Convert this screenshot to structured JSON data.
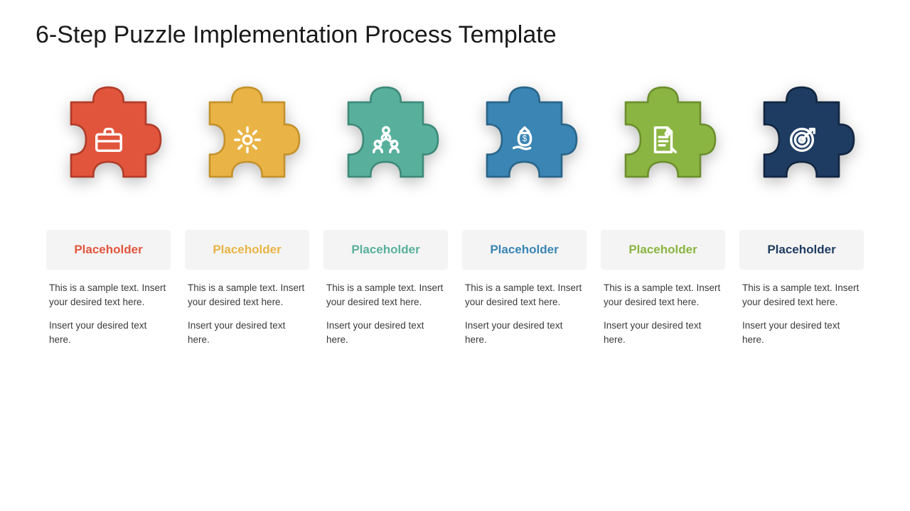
{
  "title": "6-Step Puzzle Implementation Process Template",
  "background_color": "#ffffff",
  "card_header_bg": "#f4f4f4",
  "body_text_color": "#3a3a3a",
  "steps": [
    {
      "color": "#e2553d",
      "stroke": "#b03c29",
      "icon": "briefcase",
      "label": "Placeholder",
      "text1": "This is a sample text. Insert your desired text here.",
      "text2": "Insert your desired text here."
    },
    {
      "color": "#e9b445",
      "stroke": "#c4922d",
      "icon": "gear",
      "label": "Placeholder",
      "text1": "This is a sample text. Insert your desired text here.",
      "text2": "Insert your desired text here."
    },
    {
      "color": "#58b09c",
      "stroke": "#3e8a79",
      "icon": "people",
      "label": "Placeholder",
      "text1": "This is a sample text. Insert your desired text here.",
      "text2": "Insert your desired text here."
    },
    {
      "color": "#3a85b4",
      "stroke": "#2a6589",
      "icon": "moneyhand",
      "label": "Placeholder",
      "text1": "This is a sample text. Insert your desired text here.",
      "text2": "Insert your desired text here."
    },
    {
      "color": "#8bb542",
      "stroke": "#6c8f2e",
      "icon": "document",
      "label": "Placeholder",
      "text1": "This is a sample text. Insert your desired text here.",
      "text2": "Insert your desired text here."
    },
    {
      "color": "#1e3c62",
      "stroke": "#122640",
      "icon": "target",
      "label": "Placeholder",
      "text1": "This is a sample text. Insert your desired text here.",
      "text2": "Insert your desired text here."
    }
  ],
  "icon_stroke": "#ffffff",
  "title_fontsize": 34,
  "label_fontsize": 17,
  "body_fontsize": 13.5
}
